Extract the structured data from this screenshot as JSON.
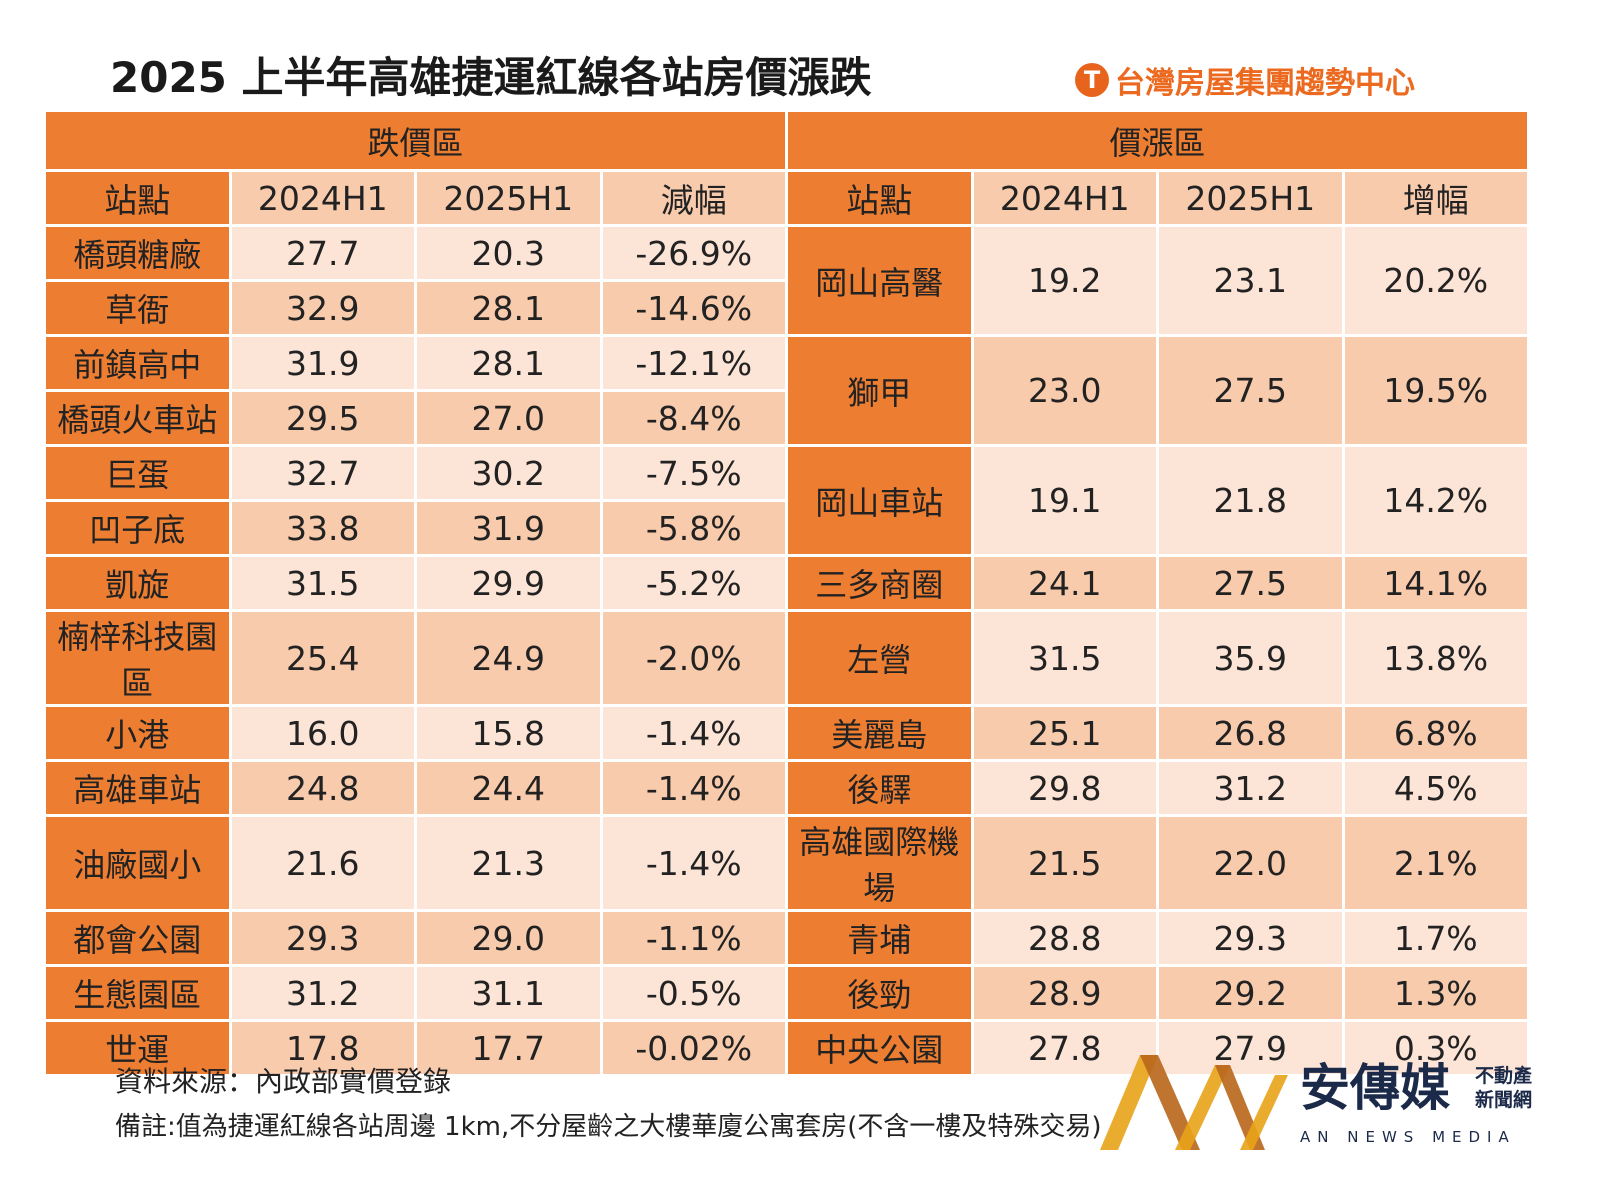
{
  "title": "2025 上半年高雄捷運紅線各站房價漲跌",
  "brand": {
    "text": "台灣房屋集團趨勢中心",
    "mark": "T",
    "color": "#ED7D31"
  },
  "chart_data": {
    "type": "table",
    "title": "2025 上半年高雄捷運紅線各站房價漲跌",
    "left": {
      "group": "跌價區",
      "headers": [
        "站點",
        "2024H1",
        "2025H1",
        "減幅"
      ],
      "rows": [
        [
          "橋頭糖廠",
          "27.7",
          "20.3",
          "-26.9%"
        ],
        [
          "草衙",
          "32.9",
          "28.1",
          "-14.6%"
        ],
        [
          "前鎮高中",
          "31.9",
          "28.1",
          "-12.1%"
        ],
        [
          "橋頭火車站",
          "29.5",
          "27.0",
          "-8.4%"
        ],
        [
          "巨蛋",
          "32.7",
          "30.2",
          "-7.5%"
        ],
        [
          "凹子底",
          "33.8",
          "31.9",
          "-5.8%"
        ],
        [
          "凱旋",
          "31.5",
          "29.9",
          "-5.2%"
        ],
        [
          "楠梓科技園區",
          "25.4",
          "24.9",
          "-2.0%"
        ],
        [
          "小港",
          "16.0",
          "15.8",
          "-1.4%"
        ],
        [
          "高雄車站",
          "24.8",
          "24.4",
          "-1.4%"
        ],
        [
          "油廠國小",
          "21.6",
          "21.3",
          "-1.4%"
        ],
        [
          "都會公園",
          "29.3",
          "29.0",
          "-1.1%"
        ],
        [
          "生態園區",
          "31.2",
          "31.1",
          "-0.5%"
        ],
        [
          "世運",
          "17.8",
          "17.7",
          "-0.02%"
        ]
      ]
    },
    "right": {
      "group": "價漲區",
      "headers": [
        "站點",
        "2024H1",
        "2025H1",
        "增幅"
      ],
      "rows": [
        [
          "岡山高醫",
          "19.2",
          "23.1",
          "20.2%"
        ],
        [
          "獅甲",
          "23.0",
          "27.5",
          "19.5%"
        ],
        [
          "岡山車站",
          "19.1",
          "21.8",
          "14.2%"
        ],
        [
          "三多商圈",
          "24.1",
          "27.5",
          "14.1%"
        ],
        [
          "左營",
          "31.5",
          "35.9",
          "13.8%"
        ],
        [
          "美麗島",
          "25.1",
          "26.8",
          "6.8%"
        ],
        [
          "後驛",
          "29.8",
          "31.2",
          "4.5%"
        ],
        [
          "高雄國際機場",
          "21.5",
          "22.0",
          "2.1%"
        ],
        [
          "青埔",
          "28.8",
          "29.3",
          "1.7%"
        ],
        [
          "後勁",
          "28.9",
          "29.2",
          "1.3%"
        ],
        [
          "中央公園",
          "27.8",
          "27.9",
          "0.3%"
        ]
      ]
    }
  },
  "footer": {
    "source": "資料來源：內政部實價登錄",
    "note": "備註:值為捷運紅線各站周邊 1km,不分屋齡之大樓華廈公寓套房(不含一樓及特殊交易)"
  },
  "watermark": {
    "cn": "安傳媒",
    "sub1": "不動產",
    "sub2": "新聞網",
    "en": "AN NEWS MEDIA"
  }
}
